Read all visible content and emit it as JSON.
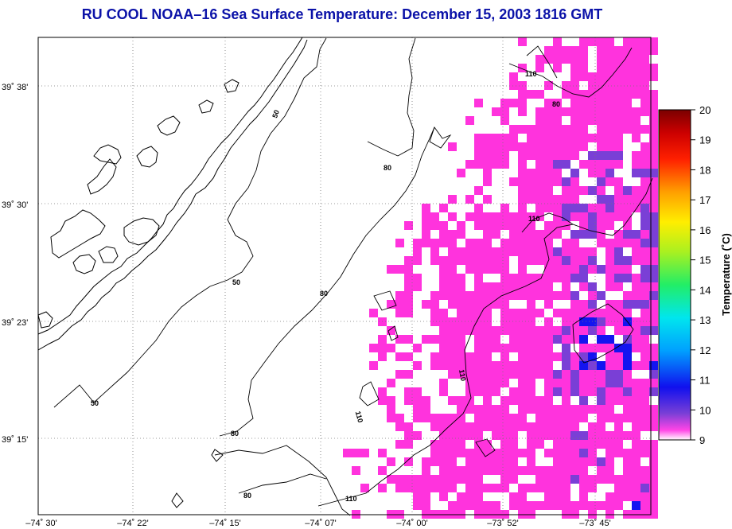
{
  "title": "RU COOL  NOAA–16  Sea Surface Temperature:  December 15, 2003 1816 GMT",
  "lat_labels": [
    "39˚ 38'",
    "39˚ 30'",
    "39˚ 23'",
    "39˚ 15'"
  ],
  "lon_labels": [
    "–74˚ 30'",
    "–74˚ 22'",
    "–74˚ 15'",
    "–74˚ 07'",
    "–74˚ 00'",
    "–73˚ 52'",
    "–73˚ 45'"
  ],
  "contour_labels": [
    "50",
    "50",
    "50",
    "80",
    "80",
    "80",
    "80",
    "80",
    "110",
    "110",
    "110",
    "110",
    "110"
  ],
  "colorbar": {
    "title": "Temperature (˚C)",
    "ticks": [
      "20",
      "19",
      "18",
      "17",
      "16",
      "15",
      "14",
      "13",
      "12",
      "11",
      "10",
      "9"
    ]
  },
  "colors": {
    "title": "#0b12a8",
    "sst_9c": "#ff33dd",
    "sst_10c": "#7a3fd6",
    "sst_11c": "#1414f0"
  },
  "chart_data": {
    "type": "heatmap",
    "title": "RU COOL  NOAA–16  Sea Surface Temperature:  December 15, 2003 1816 GMT",
    "units": "˚C",
    "color_range": [
      9,
      20
    ],
    "contour_levels": [
      50,
      80,
      110
    ],
    "sst_range_observed": [
      9,
      11
    ]
  }
}
